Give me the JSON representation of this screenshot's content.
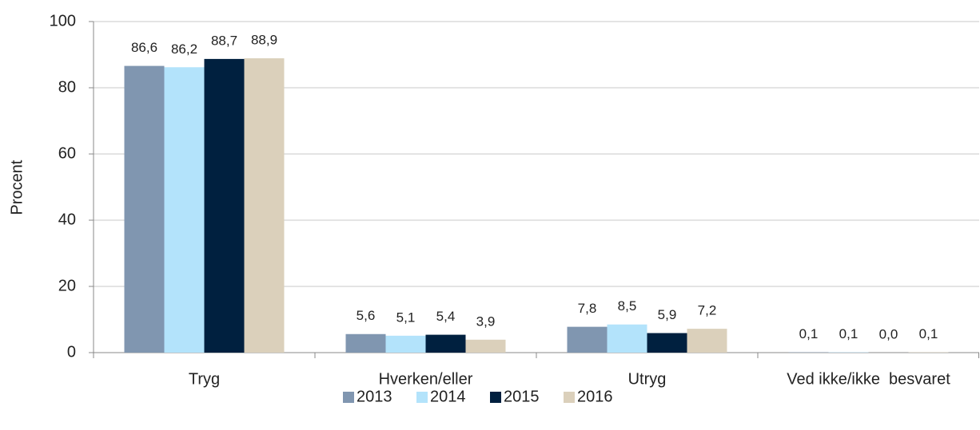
{
  "chart_data": {
    "type": "bar",
    "y_label": "Procent",
    "categories": [
      "Tryg",
      "Hverken/eller",
      "Utryg",
      "Ved ikke/ikke  besvaret"
    ],
    "series": [
      {
        "name": "2013",
        "color": "#8096b0",
        "values": [
          86.6,
          5.6,
          7.8,
          0.1
        ],
        "value_labels": [
          "86,6",
          "5,6",
          "7,8",
          "0,1"
        ]
      },
      {
        "name": "2014",
        "color": "#b3e3fb",
        "values": [
          86.2,
          5.1,
          8.5,
          0.1
        ],
        "value_labels": [
          "86,2",
          "5,1",
          "8,5",
          "0,1"
        ]
      },
      {
        "name": "2015",
        "color": "#00203f",
        "values": [
          88.7,
          5.4,
          5.9,
          0.0
        ],
        "value_labels": [
          "88,7",
          "5,4",
          "5,9",
          "0,0"
        ]
      },
      {
        "name": "2016",
        "color": "#dbd0bb",
        "values": [
          88.9,
          3.9,
          7.2,
          0.1
        ],
        "value_labels": [
          "88,9",
          "3,9",
          "7,2",
          "0,1"
        ]
      }
    ],
    "ylim": [
      0,
      100
    ],
    "yticks": [
      0,
      20,
      40,
      60,
      80,
      100
    ],
    "grid": true,
    "legend": "bottom"
  }
}
